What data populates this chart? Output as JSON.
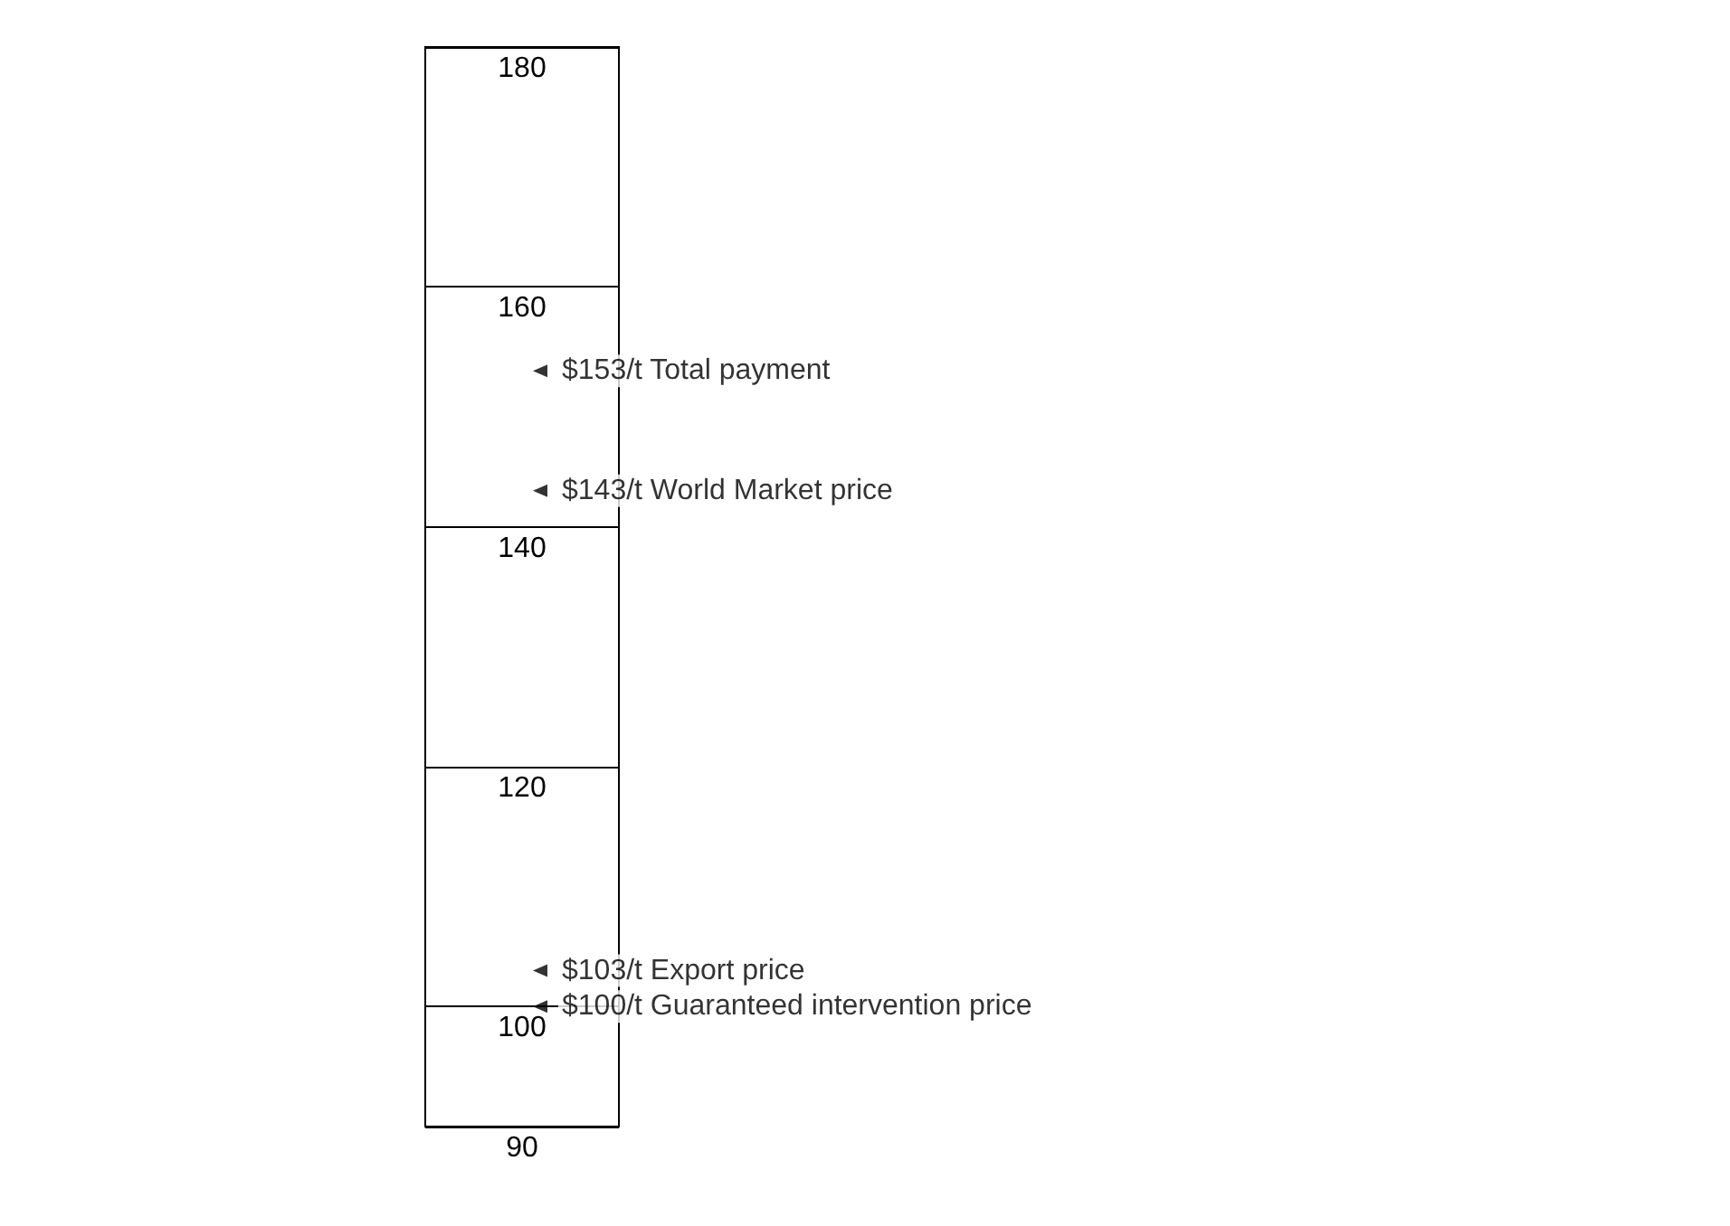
{
  "chart_data": {
    "type": "scatter",
    "ylim": [
      90,
      180
    ],
    "yticks": [
      90,
      100,
      120,
      140,
      160,
      180
    ],
    "grid": "y",
    "categories": [
      null
    ],
    "marker": "triangle",
    "series": [
      {
        "color": "#000000",
        "values": [
          153,
          143,
          103,
          100
        ],
        "x": [
          null,
          null,
          null,
          null
        ],
        "value_labels": [
          "$153/t Total payment",
          "$143/t World Market price",
          "$103/t Export price",
          "$100/t Guaranteed intervention price"
        ]
      }
    ]
  }
}
